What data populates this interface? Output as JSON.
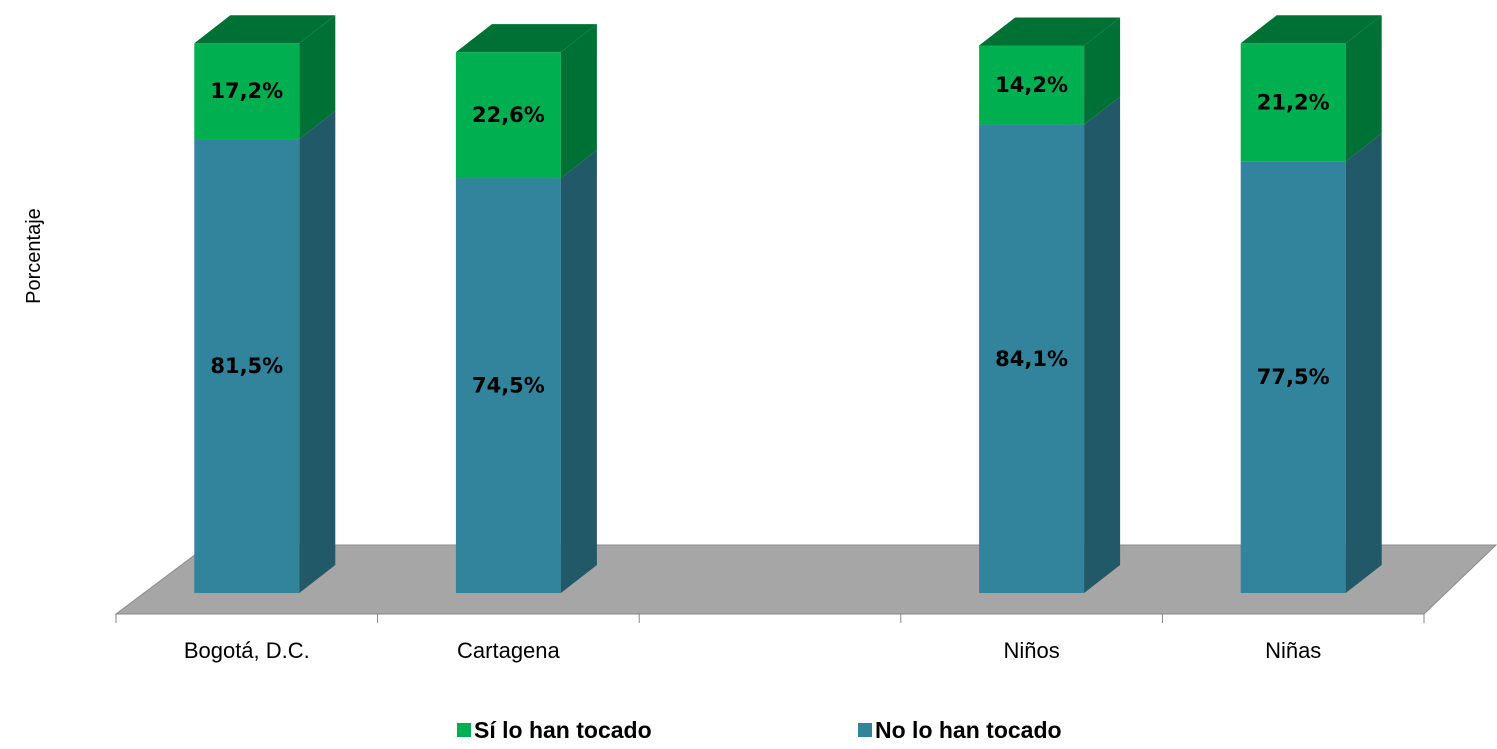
{
  "chart_data": {
    "type": "bar",
    "stacked": true,
    "three_d": true,
    "ylabel": "Porcentaje",
    "xlabel": "",
    "ylim": [
      0,
      100
    ],
    "categories": [
      "Bogotá, D.C.",
      "Cartagena",
      "",
      "Niños",
      "Niñas"
    ],
    "series": [
      {
        "name": "No lo han tocado",
        "color": "#31849b",
        "side_color": "#215968",
        "values": [
          81.5,
          74.5,
          null,
          84.1,
          77.5
        ],
        "labels": [
          "81,5%",
          "74,5%",
          "",
          "84,1%",
          "77,5%"
        ]
      },
      {
        "name": "Sí lo han tocado",
        "color": "#00b050",
        "side_color": "#007134",
        "values": [
          17.2,
          22.6,
          null,
          14.2,
          21.2
        ],
        "labels": [
          "17,2%",
          "22,6%",
          "",
          "14,2%",
          "21,2%"
        ]
      }
    ],
    "legend": {
      "position": "bottom",
      "order": [
        "Sí lo han tocado",
        "No lo han tocado"
      ]
    },
    "floor_color": "#a6a6a6",
    "grid": false
  }
}
